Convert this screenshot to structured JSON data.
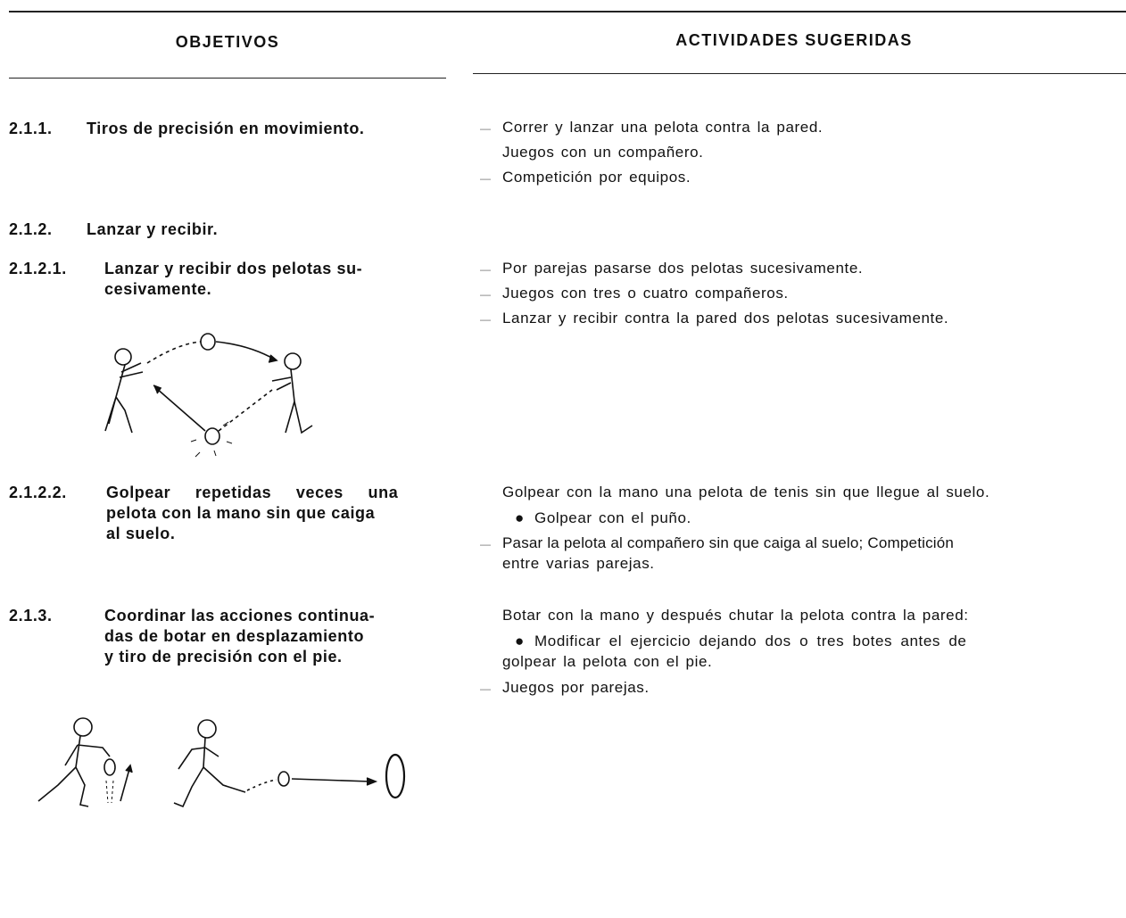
{
  "header": {
    "left": "OBJETIVOS",
    "right": "ACTIVIDADES SUGERIDAS"
  },
  "items": [
    {
      "number": "2.1.1.",
      "title": [
        "Tiros de precisión en movimiento."
      ],
      "activities": [
        [
          "Correr y lanzar una pelota contra la pared."
        ],
        [
          "Juegos con un compañero."
        ],
        [
          "Competición por equipos."
        ]
      ]
    },
    {
      "number": "2.1.2.",
      "title": [
        "Lanzar y recibir."
      ]
    },
    {
      "number": "2.1.2.1.",
      "title": [
        "Lanzar y recibir dos pelotas su-",
        "cesivamente."
      ],
      "activities": [
        [
          "Por parejas pasarse dos pelotas sucesivamente."
        ],
        [
          "Juegos con tres o cuatro compañeros."
        ],
        [
          "Lanzar y recibir contra la pared dos pelotas sucesivamente."
        ]
      ]
    },
    {
      "number": "2.1.2.2.",
      "title": [
        "Golpear repetidas veces una",
        "pelota con la mano sin que caiga",
        "al suelo."
      ],
      "activities": [
        [
          "Golpear con la mano una pelota de tenis sin que llegue al suelo."
        ],
        [
          "Golpear con el puño."
        ],
        [
          "Pasar la pelota al compañero sin que caiga al suelo; Competición",
          "entre varias parejas."
        ]
      ]
    },
    {
      "number": "2.1.3.",
      "title": [
        "Coordinar las acciones continua-",
        "das de botar en desplazamiento",
        "y tiro de precisión con el pie."
      ],
      "activities": [
        [
          "Botar con la mano y después chutar la pelota contra la pared:"
        ],
        [
          "Modificar el ejercicio dejando dos o tres botes antes de",
          "golpear la pelota con el pie."
        ],
        [
          "Juegos por parejas."
        ]
      ]
    }
  ]
}
